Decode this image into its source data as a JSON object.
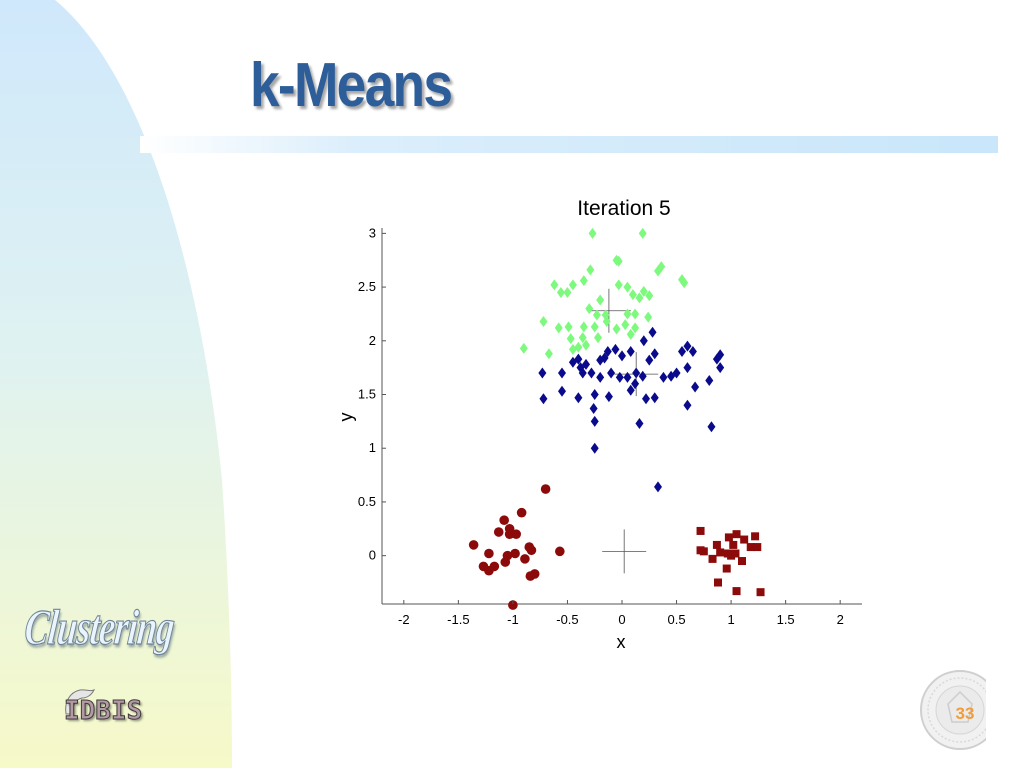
{
  "slide": {
    "title": "k-Means",
    "side_label": "Clustering",
    "logo_text": "IDBIS",
    "page_number": "33",
    "colors": {
      "title": "#2d5e9a",
      "page_number": "#f29c3a"
    }
  },
  "chart_data": {
    "type": "scatter",
    "title": "Iteration 5",
    "xlabel": "x",
    "ylabel": "y",
    "xlim": [
      -2.2,
      2.2
    ],
    "ylim": [
      -0.45,
      3.05
    ],
    "x_ticks": [
      -2,
      -1.5,
      -1,
      -0.5,
      0,
      0.5,
      1,
      1.5,
      2
    ],
    "x_tick_labels": [
      "-2",
      "-1.5",
      "-1",
      "-0.5",
      "0",
      "0.5",
      "1",
      "1.5",
      "2"
    ],
    "y_ticks": [
      0,
      0.5,
      1,
      1.5,
      2,
      2.5,
      3
    ],
    "y_tick_labels": [
      "0",
      "0.5",
      "1",
      "1.5",
      "2",
      "2.5",
      "3"
    ],
    "grid": false,
    "series": [
      {
        "marker": "diamond",
        "color": "#7dfa7d",
        "points": [
          [
            -0.27,
            3.0
          ],
          [
            0.19,
            3.0
          ],
          [
            -0.05,
            2.75
          ],
          [
            -0.03,
            2.74
          ],
          [
            0.36,
            2.69
          ],
          [
            0.33,
            2.65
          ],
          [
            0.55,
            2.57
          ],
          [
            0.57,
            2.54
          ],
          [
            -0.29,
            2.66
          ],
          [
            -0.35,
            2.56
          ],
          [
            -0.45,
            2.52
          ],
          [
            -0.62,
            2.52
          ],
          [
            -0.56,
            2.45
          ],
          [
            -0.5,
            2.45
          ],
          [
            -0.03,
            2.52
          ],
          [
            0.05,
            2.5
          ],
          [
            0.2,
            2.46
          ],
          [
            0.25,
            2.42
          ],
          [
            0.16,
            2.4
          ],
          [
            0.1,
            2.43
          ],
          [
            -0.2,
            2.38
          ],
          [
            -0.3,
            2.3
          ],
          [
            -0.23,
            2.24
          ],
          [
            -0.15,
            2.24
          ],
          [
            0.05,
            2.25
          ],
          [
            0.12,
            2.25
          ],
          [
            0.24,
            2.22
          ],
          [
            -0.72,
            2.18
          ],
          [
            -0.58,
            2.12
          ],
          [
            -0.49,
            2.13
          ],
          [
            -0.35,
            2.13
          ],
          [
            -0.25,
            2.13
          ],
          [
            -0.14,
            2.18
          ],
          [
            0.03,
            2.15
          ],
          [
            -0.05,
            2.11
          ],
          [
            0.12,
            2.12
          ],
          [
            0.08,
            2.06
          ],
          [
            -0.47,
            2.02
          ],
          [
            -0.36,
            2.03
          ],
          [
            -0.22,
            2.03
          ],
          [
            -0.9,
            1.93
          ],
          [
            -0.67,
            1.88
          ],
          [
            -0.4,
            1.94
          ],
          [
            -0.45,
            1.92
          ],
          [
            -0.33,
            1.96
          ]
        ]
      },
      {
        "marker": "diamond",
        "color": "#0a0a8c",
        "points": [
          [
            0.28,
            2.08
          ],
          [
            0.2,
            2.0
          ],
          [
            -0.13,
            1.9
          ],
          [
            -0.06,
            1.92
          ],
          [
            0.0,
            1.86
          ],
          [
            -0.16,
            1.84
          ],
          [
            -0.2,
            1.82
          ],
          [
            0.08,
            1.9
          ],
          [
            0.3,
            1.88
          ],
          [
            0.25,
            1.82
          ],
          [
            0.6,
            1.95
          ],
          [
            0.65,
            1.9
          ],
          [
            0.55,
            1.9
          ],
          [
            0.87,
            1.83
          ],
          [
            0.9,
            1.87
          ],
          [
            -0.4,
            1.83
          ],
          [
            -0.45,
            1.8
          ],
          [
            -0.33,
            1.78
          ],
          [
            -0.38,
            1.75
          ],
          [
            -0.36,
            1.7
          ],
          [
            -0.73,
            1.7
          ],
          [
            -0.55,
            1.7
          ],
          [
            -0.28,
            1.7
          ],
          [
            -0.2,
            1.66
          ],
          [
            -0.1,
            1.7
          ],
          [
            -0.02,
            1.66
          ],
          [
            0.05,
            1.66
          ],
          [
            0.13,
            1.7
          ],
          [
            0.19,
            1.67
          ],
          [
            0.38,
            1.66
          ],
          [
            0.45,
            1.67
          ],
          [
            0.5,
            1.7
          ],
          [
            0.6,
            1.75
          ],
          [
            0.9,
            1.75
          ],
          [
            0.8,
            1.63
          ],
          [
            0.67,
            1.57
          ],
          [
            0.12,
            1.6
          ],
          [
            0.08,
            1.54
          ],
          [
            -0.55,
            1.53
          ],
          [
            -0.25,
            1.5
          ],
          [
            -0.12,
            1.48
          ],
          [
            -0.4,
            1.47
          ],
          [
            -0.72,
            1.46
          ],
          [
            0.3,
            1.47
          ],
          [
            0.22,
            1.46
          ],
          [
            0.6,
            1.4
          ],
          [
            -0.26,
            1.37
          ],
          [
            -0.25,
            1.25
          ],
          [
            0.16,
            1.23
          ],
          [
            0.82,
            1.2
          ],
          [
            -0.25,
            1.0
          ],
          [
            0.33,
            0.64
          ]
        ]
      },
      {
        "marker": "circle",
        "color": "#8c0a0a",
        "points": [
          [
            -0.7,
            0.62
          ],
          [
            -0.92,
            0.4
          ],
          [
            -1.08,
            0.33
          ],
          [
            -1.03,
            0.25
          ],
          [
            -1.13,
            0.22
          ],
          [
            -1.03,
            0.2
          ],
          [
            -0.97,
            0.2
          ],
          [
            -1.36,
            0.1
          ],
          [
            -0.85,
            0.08
          ],
          [
            -0.83,
            0.05
          ],
          [
            -0.57,
            0.04
          ],
          [
            -1.22,
            0.02
          ],
          [
            -0.98,
            0.02
          ],
          [
            -1.05,
            0.0
          ],
          [
            -0.89,
            -0.03
          ],
          [
            -1.07,
            -0.06
          ],
          [
            -1.27,
            -0.1
          ],
          [
            -1.17,
            -0.1
          ],
          [
            -1.22,
            -0.14
          ],
          [
            -0.8,
            -0.17
          ],
          [
            -0.84,
            -0.19
          ],
          [
            -1.0,
            -0.46
          ]
        ]
      },
      {
        "marker": "square",
        "color": "#8c0a0a",
        "points": [
          [
            0.72,
            0.23
          ],
          [
            1.05,
            0.2
          ],
          [
            0.98,
            0.17
          ],
          [
            1.22,
            0.18
          ],
          [
            1.12,
            0.15
          ],
          [
            0.87,
            0.1
          ],
          [
            1.02,
            0.1
          ],
          [
            1.18,
            0.08
          ],
          [
            1.24,
            0.08
          ],
          [
            0.72,
            0.05
          ],
          [
            0.75,
            0.04
          ],
          [
            0.9,
            0.03
          ],
          [
            0.97,
            0.02
          ],
          [
            1.04,
            0.02
          ],
          [
            1.0,
            0.0
          ],
          [
            0.83,
            -0.03
          ],
          [
            1.1,
            -0.05
          ],
          [
            0.96,
            -0.12
          ],
          [
            0.88,
            -0.25
          ],
          [
            1.05,
            -0.33
          ],
          [
            1.27,
            -0.34
          ]
        ]
      }
    ],
    "centroids": [
      [
        -0.12,
        2.28
      ],
      [
        0.13,
        1.69
      ],
      [
        0.02,
        0.04
      ]
    ]
  }
}
